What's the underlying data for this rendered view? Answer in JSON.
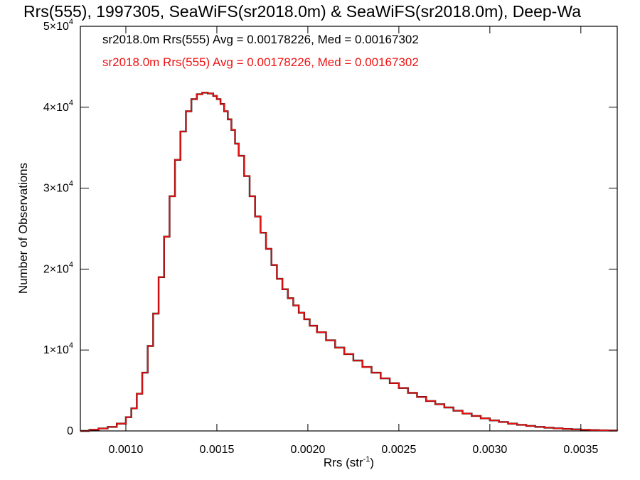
{
  "chart_data": {
    "type": "histogram",
    "title": "Rrs(555), 1997305, SeaWiFS(sr2018.0m) & SeaWiFS(sr2018.0m), Deep-Wa",
    "xlabel": {
      "base": "Rrs (str",
      "sup": "-1",
      "tail": ")"
    },
    "ylabel": "Number of Observations",
    "xlim": [
      0.00075,
      0.0037
    ],
    "ylim": [
      0,
      50000
    ],
    "grid": false,
    "xticks": [
      0.001,
      0.0015,
      0.002,
      0.0025,
      0.003,
      0.0035
    ],
    "xtick_labels": [
      "0.0010",
      "0.0015",
      "0.0020",
      "0.0025",
      "0.0030",
      "0.0035"
    ],
    "yticks": [
      0,
      10000,
      20000,
      30000,
      40000,
      50000
    ],
    "ytick_labels": [
      {
        "base": "0",
        "exp": ""
      },
      {
        "base": "1×10",
        "exp": "4"
      },
      {
        "base": "2×10",
        "exp": "4"
      },
      {
        "base": "3×10",
        "exp": "4"
      },
      {
        "base": "4×10",
        "exp": "4"
      },
      {
        "base": "5×10",
        "exp": "4"
      }
    ],
    "legend_placement": "top-left",
    "annotations": [
      {
        "text": "sr2018.0m Rrs(555) Avg = 0.00178226, Med = 0.00167302",
        "color": "#000000"
      },
      {
        "text": "sr2018.0m Rrs(555) Avg = 0.00178226, Med = 0.00167302",
        "color": "#ee1111"
      }
    ],
    "series": [
      {
        "color": "#ee1111",
        "underlay_color": "#000000",
        "x": [
          0.00075,
          0.0008,
          0.00085,
          0.0009,
          0.00095,
          0.001,
          0.00103,
          0.00106,
          0.00109,
          0.00112,
          0.00115,
          0.00118,
          0.00121,
          0.00124,
          0.00127,
          0.0013,
          0.00133,
          0.00136,
          0.00139,
          0.00142,
          0.00145,
          0.00148,
          0.0015,
          0.00152,
          0.00154,
          0.00156,
          0.00158,
          0.0016,
          0.00162,
          0.00165,
          0.00168,
          0.00171,
          0.00174,
          0.00177,
          0.0018,
          0.00183,
          0.00186,
          0.00189,
          0.00192,
          0.00195,
          0.00198,
          0.00201,
          0.00205,
          0.0021,
          0.00215,
          0.0022,
          0.00225,
          0.0023,
          0.00235,
          0.0024,
          0.00245,
          0.0025,
          0.00255,
          0.0026,
          0.00265,
          0.0027,
          0.00275,
          0.0028,
          0.00285,
          0.0029,
          0.00295,
          0.003,
          0.00305,
          0.0031,
          0.00315,
          0.0032,
          0.00325,
          0.0033,
          0.00335,
          0.0034,
          0.00345,
          0.0035,
          0.00355,
          0.0036,
          0.00365,
          0.0037
        ],
        "y": [
          0,
          150,
          300,
          500,
          900,
          1700,
          2800,
          4600,
          7200,
          10500,
          14500,
          19000,
          24000,
          29000,
          33500,
          37000,
          39500,
          41000,
          41600,
          41800,
          41700,
          41400,
          41000,
          40400,
          39500,
          38500,
          37200,
          35500,
          34000,
          31500,
          29000,
          26500,
          24500,
          22500,
          20500,
          18800,
          17500,
          16400,
          15500,
          14600,
          13800,
          13000,
          12200,
          11200,
          10300,
          9500,
          8700,
          7900,
          7200,
          6500,
          5900,
          5300,
          4700,
          4200,
          3700,
          3300,
          2900,
          2500,
          2150,
          1850,
          1550,
          1300,
          1100,
          900,
          750,
          620,
          500,
          400,
          320,
          250,
          190,
          140,
          100,
          70,
          50,
          30
        ]
      }
    ]
  }
}
